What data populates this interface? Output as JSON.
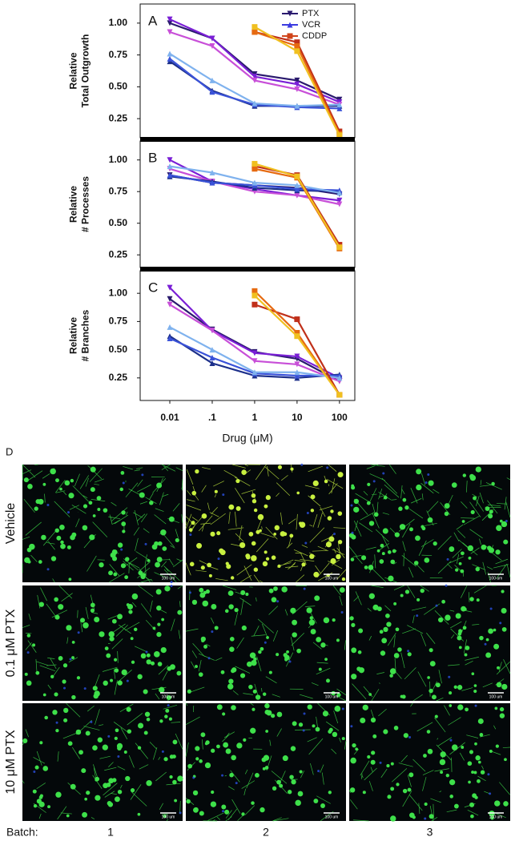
{
  "chart_data": [
    {
      "type": "line",
      "panel": "A",
      "ylabel": [
        "Relative",
        "Total Outgrowth"
      ],
      "xscale": "log",
      "xlim": [
        0.002,
        230
      ],
      "ylim": [
        0.1,
        1.15
      ],
      "x": [
        0.01,
        0.1,
        1,
        10,
        100
      ],
      "yticks": [
        {
          "value": 1,
          "label": "1.00"
        },
        0.75,
        {
          "value": 0.5,
          "label": "0.50"
        },
        0.25
      ],
      "legend": [
        {
          "name": "PTX",
          "color": "#2a1a6e",
          "marker": "triangle-down"
        },
        {
          "name": "VCR",
          "color": "#3a3ae0",
          "marker": "triangle-up"
        },
        {
          "name": "CDDP",
          "color": "#d0441a",
          "marker": "square"
        }
      ],
      "series": [
        {
          "color": "#2a1a6e",
          "marker": "triangle-down",
          "values": [
            1.0,
            0.88,
            0.6,
            0.55,
            0.4
          ]
        },
        {
          "color": "#7a1fd6",
          "marker": "triangle-down",
          "values": [
            1.03,
            0.88,
            0.58,
            0.52,
            0.38
          ]
        },
        {
          "color": "#c84fd8",
          "marker": "triangle-down",
          "values": [
            0.93,
            0.82,
            0.55,
            0.48,
            0.36
          ]
        },
        {
          "color": "#1c2f8a",
          "marker": "triangle-up",
          "values": [
            0.7,
            0.47,
            0.35,
            0.35,
            0.35
          ]
        },
        {
          "color": "#3a52d8",
          "marker": "triangle-up",
          "values": [
            0.72,
            0.46,
            0.36,
            0.34,
            0.33
          ]
        },
        {
          "color": "#7fb2ee",
          "marker": "triangle-up",
          "values": [
            0.76,
            0.55,
            0.37,
            0.35,
            0.36
          ]
        },
        {
          "color": "#c0301a",
          "marker": "square",
          "values": [
            null,
            null,
            0.93,
            0.85,
            0.15
          ]
        },
        {
          "color": "#e66a10",
          "marker": "square",
          "values": [
            null,
            null,
            0.93,
            0.82,
            0.13
          ]
        },
        {
          "color": "#f0c020",
          "marker": "square",
          "values": [
            null,
            null,
            0.97,
            0.78,
            0.12
          ]
        }
      ]
    },
    {
      "type": "line",
      "panel": "B",
      "ylabel": [
        "Relative",
        "# Processes"
      ],
      "xscale": "log",
      "xlim": [
        0.002,
        230
      ],
      "ylim": [
        0.15,
        1.15
      ],
      "x": [
        0.01,
        0.1,
        1,
        10,
        100
      ],
      "yticks": [
        {
          "value": 1,
          "label": "1.00"
        },
        0.75,
        {
          "value": 0.5,
          "label": "0.50"
        },
        0.25
      ],
      "series": [
        {
          "color": "#2a1a6e",
          "marker": "triangle-down",
          "values": [
            0.88,
            0.82,
            0.8,
            0.78,
            0.73
          ]
        },
        {
          "color": "#7a1fd6",
          "marker": "triangle-down",
          "values": [
            1.0,
            0.83,
            0.77,
            0.72,
            0.68
          ]
        },
        {
          "color": "#c84fd8",
          "marker": "triangle-down",
          "values": [
            0.93,
            0.83,
            0.75,
            0.72,
            0.65
          ]
        },
        {
          "color": "#1c2f8a",
          "marker": "triangle-up",
          "values": [
            0.87,
            0.83,
            0.78,
            0.76,
            0.75
          ]
        },
        {
          "color": "#3a52d8",
          "marker": "triangle-up",
          "values": [
            0.88,
            0.82,
            0.8,
            0.77,
            0.76
          ]
        },
        {
          "color": "#7fb2ee",
          "marker": "triangle-up",
          "values": [
            0.95,
            0.9,
            0.82,
            0.8,
            0.74
          ]
        },
        {
          "color": "#c0301a",
          "marker": "square",
          "values": [
            null,
            null,
            0.95,
            0.88,
            0.33
          ]
        },
        {
          "color": "#e66a10",
          "marker": "square",
          "values": [
            null,
            null,
            0.93,
            0.86,
            0.3
          ]
        },
        {
          "color": "#f0c020",
          "marker": "square",
          "values": [
            null,
            null,
            0.97,
            0.87,
            0.31
          ]
        }
      ]
    },
    {
      "type": "line",
      "panel": "C",
      "ylabel": [
        "Relative",
        "# Branches"
      ],
      "xscale": "log",
      "xlabel": "Drug (μM)",
      "xlim": [
        0.002,
        230
      ],
      "ylim": [
        0.05,
        1.2
      ],
      "x": [
        0.01,
        0.1,
        1,
        10,
        100
      ],
      "xticks": [
        0.01,
        {
          "value": 0.1,
          "label": ".1"
        },
        1,
        10,
        100
      ],
      "yticks": [
        {
          "value": 1,
          "label": "1.00"
        },
        0.75,
        {
          "value": 0.5,
          "label": "0.50"
        },
        0.25
      ],
      "series": [
        {
          "color": "#2a1a6e",
          "marker": "triangle-down",
          "values": [
            0.95,
            0.68,
            0.48,
            0.42,
            0.22
          ]
        },
        {
          "color": "#7a1fd6",
          "marker": "triangle-down",
          "values": [
            1.05,
            0.67,
            0.47,
            0.44,
            0.25
          ]
        },
        {
          "color": "#c84fd8",
          "marker": "triangle-down",
          "values": [
            0.9,
            0.67,
            0.4,
            0.37,
            0.22
          ]
        },
        {
          "color": "#1c2f8a",
          "marker": "triangle-up",
          "values": [
            0.62,
            0.38,
            0.27,
            0.25,
            0.28
          ]
        },
        {
          "color": "#3a52d8",
          "marker": "triangle-up",
          "values": [
            0.6,
            0.43,
            0.29,
            0.27,
            0.27
          ]
        },
        {
          "color": "#7fb2ee",
          "marker": "triangle-up",
          "values": [
            0.7,
            0.5,
            0.3,
            0.3,
            0.25
          ]
        },
        {
          "color": "#c0301a",
          "marker": "square",
          "values": [
            null,
            null,
            0.9,
            0.77,
            0.1
          ]
        },
        {
          "color": "#e66a10",
          "marker": "square",
          "values": [
            null,
            null,
            1.02,
            0.65,
            0.1
          ]
        },
        {
          "color": "#f0c020",
          "marker": "square",
          "values": [
            null,
            null,
            0.98,
            0.62,
            0.1
          ]
        }
      ]
    }
  ],
  "panel_d": {
    "label": "D",
    "rows": [
      "Vehicle",
      "0.1 μM PTX",
      "10 μM PTX"
    ],
    "batch_label": "Batch:",
    "batches": [
      "1",
      "2",
      "3"
    ],
    "scale_bar": "100 um"
  }
}
